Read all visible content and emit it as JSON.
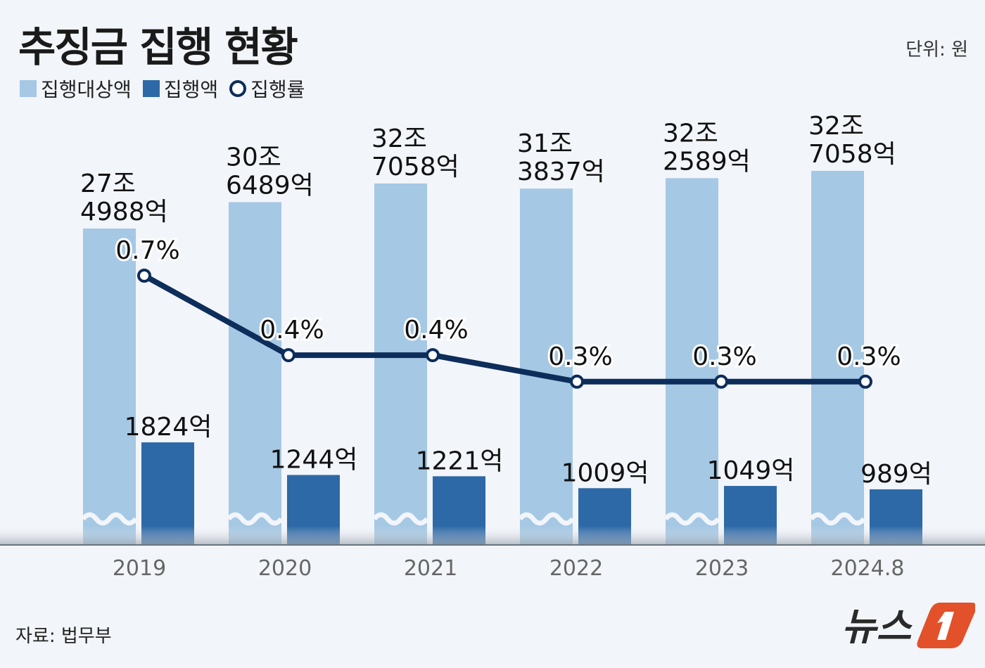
{
  "title": "추징금 집행 현황",
  "unit": "단위: 원",
  "source": "자료: 법무부",
  "logo": "뉴스1",
  "colors": {
    "target": "#a5c8e4",
    "executed": "#2d69a6",
    "rate": "#0d2d5a",
    "background": "#f2f5fa",
    "logo": "#e2512a"
  },
  "chart_data": {
    "type": "bar",
    "categories": [
      "2019",
      "2020",
      "2021",
      "2022",
      "2023",
      "2024.8"
    ],
    "y_axis_break": true,
    "series": [
      {
        "name": "집행대상액",
        "type": "bar",
        "unit": "조원",
        "values": [
          27.4988,
          30.6489,
          32.7058,
          31.3837,
          32.2589,
          32.7058
        ],
        "labels": [
          [
            "27조",
            "4988억"
          ],
          [
            "30조",
            "6489억"
          ],
          [
            "32조",
            "7058억"
          ],
          [
            "31조",
            "3837억"
          ],
          [
            "32조",
            "2589억"
          ],
          [
            "32조",
            "7058억"
          ]
        ]
      },
      {
        "name": "집행액",
        "type": "bar",
        "unit": "억원",
        "values": [
          1824,
          1244,
          1221,
          1009,
          1049,
          989
        ],
        "labels": [
          "1824억",
          "1244억",
          "1221억",
          "1009억",
          "1049억",
          "989억"
        ]
      },
      {
        "name": "집행률",
        "type": "line",
        "unit": "%",
        "values": [
          0.7,
          0.4,
          0.4,
          0.3,
          0.3,
          0.3
        ],
        "labels": [
          "0.7%",
          "0.4%",
          "0.4%",
          "0.3%",
          "0.3%",
          "0.3%"
        ]
      }
    ]
  }
}
